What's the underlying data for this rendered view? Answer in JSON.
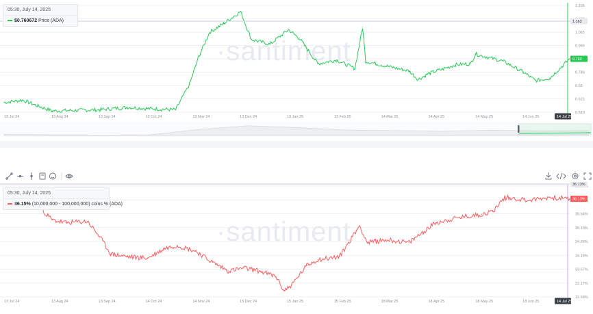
{
  "watermark": "·santiment",
  "top_chart": {
    "tooltip": {
      "date": "05:30, July 14, 2025",
      "value": "$0.760672",
      "label": "Price (ADA)",
      "color": "#26c953"
    },
    "current_label": "0.760",
    "crosshair_label": "1.162",
    "date_badge": "14 Jul 25"
  },
  "bottom_chart": {
    "tooltip": {
      "date": "05:30, July 14, 2025",
      "value": "36.15%",
      "label": "(10,000,000 - 100,000,000) coins % (ADA)",
      "color": "#ff5b5b"
    },
    "current_label": "36.13%",
    "date_badge": "14 Jul 25"
  },
  "toolbar": {
    "left_icons": [
      "trend-line-icon",
      "horizontal-line-icon",
      "vertical-line-icon",
      "note-icon",
      "emoji-icon",
      "eye-icon"
    ],
    "right_icons": [
      "download-icon",
      "embed-icon",
      "settings-icon",
      "fullscreen-icon"
    ]
  },
  "chart_data": [
    {
      "type": "line",
      "title": "",
      "xlabel": "",
      "ylabel": "",
      "x_ticks": [
        "13 Jul 24",
        "13 Aug 24",
        "13 Sep 24",
        "13 Oct 24",
        "13 Nov 24",
        "13 Dec 24",
        "13 Jan 25",
        "13 Feb 25",
        "14 Mar 25",
        "14 Apr 25",
        "14 May 25",
        "14 Jun 25",
        "14 Jul 25"
      ],
      "y_ticks": [
        "1.205",
        "1.162",
        "1.065",
        "0.996",
        "0.927",
        "0.786",
        "0.65",
        "0.621",
        "0.560"
      ],
      "ylim": [
        0.32,
        1.2
      ],
      "grid": true,
      "series": [
        {
          "name": "Price (ADA)",
          "color": "#26c953",
          "x": [
            "13 Jul 24",
            "25 Jul 24",
            "2 Aug 24",
            "13 Aug 24",
            "13 Sep 24",
            "1 Oct 24",
            "13 Oct 24",
            "1 Nov 24",
            "10 Nov 24",
            "16 Nov 24",
            "23 Nov 24",
            "2 Dec 24",
            "13 Dec 24",
            "20 Dec 24",
            "1 Jan 25",
            "13 Jan 25",
            "20 Jan 25",
            "1 Feb 25",
            "13 Feb 25",
            "25 Feb 25",
            "2 Mar 25",
            "4 Mar 25",
            "14 Mar 25",
            "1 Apr 25",
            "7 Apr 25",
            "14 Apr 25",
            "1 May 25",
            "11 May 25",
            "14 May 25",
            "1 Jun 25",
            "14 Jun 25",
            "22 Jun 25",
            "1 Jul 25",
            "14 Jul 25"
          ],
          "values": [
            0.4,
            0.42,
            0.38,
            0.33,
            0.34,
            0.36,
            0.35,
            0.34,
            0.55,
            0.78,
            0.98,
            1.05,
            1.15,
            0.92,
            0.88,
            1.0,
            0.93,
            0.72,
            0.75,
            0.68,
            1.02,
            0.74,
            0.71,
            0.66,
            0.59,
            0.64,
            0.71,
            0.72,
            0.8,
            0.74,
            0.65,
            0.58,
            0.6,
            0.76
          ]
        }
      ],
      "navigator_values": [
        0.4,
        0.35,
        0.34,
        0.35,
        0.8,
        1.1,
        0.95,
        0.75,
        0.7,
        0.64,
        0.74,
        0.68,
        0.7
      ]
    },
    {
      "type": "line",
      "title": "",
      "xlabel": "",
      "ylabel": "",
      "x_ticks": [
        "13 Jul 24",
        "13 Aug 24",
        "13 Sep 24",
        "14 Oct 24",
        "14 Nov 24",
        "15 Dec 24",
        "15 Jan 25",
        "15 Feb 25",
        "18 Mar 25",
        "18 Apr 25",
        "18 May 25",
        "18 Jun 25",
        "14 Jul 25"
      ],
      "y_ticks": [
        "36.60%",
        "36.13%",
        "35.64%",
        "35.15%",
        "34.66%",
        "34.18%",
        "33.67%",
        "33.17%",
        "32.68%"
      ],
      "ylim": [
        32.68,
        36.6
      ],
      "grid": true,
      "series": [
        {
          "name": "(10,000,000 - 100,000,000) coins % (ADA)",
          "color": "#ff5b5b",
          "x": [
            "13 Jul 24",
            "20 Jul 24",
            "28 Jul 24",
            "5 Aug 24",
            "13 Aug 24",
            "22 Aug 24",
            "5 Sep 24",
            "13 Sep 24",
            "20 Sep 24",
            "1 Oct 24",
            "14 Oct 24",
            "25 Oct 24",
            "2 Nov 24",
            "14 Nov 24",
            "25 Nov 24",
            "5 Dec 24",
            "15 Dec 24",
            "25 Dec 24",
            "5 Jan 25",
            "10 Jan 25",
            "15 Jan 25",
            "25 Jan 25",
            "1 Feb 25",
            "15 Feb 25",
            "28 Feb 25",
            "5 Mar 25",
            "18 Mar 25",
            "1 Apr 25",
            "18 Apr 25",
            "5 May 25",
            "18 May 25",
            "25 May 25",
            "2 Jun 25",
            "18 Jun 25",
            "1 Jul 25",
            "14 Jul 25"
          ],
          "values": [
            36.0,
            35.9,
            36.1,
            35.85,
            35.4,
            35.3,
            35.35,
            34.8,
            34.2,
            34.1,
            34.05,
            34.4,
            34.5,
            34.3,
            33.9,
            33.6,
            33.7,
            33.6,
            33.4,
            32.9,
            33.1,
            33.8,
            34.0,
            34.1,
            35.2,
            34.6,
            34.7,
            34.6,
            35.3,
            35.5,
            35.6,
            35.7,
            36.2,
            36.1,
            36.2,
            36.15
          ]
        }
      ],
      "navigator_values": []
    }
  ]
}
